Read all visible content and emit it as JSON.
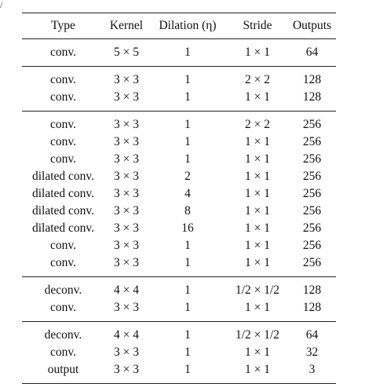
{
  "corner_mark": "/",
  "table": {
    "headers": [
      "Type",
      "Kernel",
      "Dilation (η)",
      "Stride",
      "Outputs"
    ],
    "groups": [
      [
        [
          "conv.",
          "5 × 5",
          "1",
          "1 × 1",
          "64"
        ]
      ],
      [
        [
          "conv.",
          "3 × 3",
          "1",
          "2 × 2",
          "128"
        ],
        [
          "conv.",
          "3 × 3",
          "1",
          "1 × 1",
          "128"
        ]
      ],
      [
        [
          "conv.",
          "3 × 3",
          "1",
          "2 × 2",
          "256"
        ],
        [
          "conv.",
          "3 × 3",
          "1",
          "1 × 1",
          "256"
        ],
        [
          "conv.",
          "3 × 3",
          "1",
          "1 × 1",
          "256"
        ],
        [
          "dilated conv.",
          "3 × 3",
          "2",
          "1 × 1",
          "256"
        ],
        [
          "dilated conv.",
          "3 × 3",
          "4",
          "1 × 1",
          "256"
        ],
        [
          "dilated conv.",
          "3 × 3",
          "8",
          "1 × 1",
          "256"
        ],
        [
          "dilated conv.",
          "3 × 3",
          "16",
          "1 × 1",
          "256"
        ],
        [
          "conv.",
          "3 × 3",
          "1",
          "1 × 1",
          "256"
        ],
        [
          "conv.",
          "3 × 3",
          "1",
          "1 × 1",
          "256"
        ]
      ],
      [
        [
          "deconv.",
          "4 × 4",
          "1",
          "1/2 × 1/2",
          "128"
        ],
        [
          "conv.",
          "3 × 3",
          "1",
          "1 × 1",
          "128"
        ]
      ],
      [
        [
          "deconv.",
          "4 × 4",
          "1",
          "1/2 × 1/2",
          "64"
        ],
        [
          "conv.",
          "3 × 3",
          "1",
          "1 × 1",
          "32"
        ],
        [
          "output",
          "3 × 3",
          "1",
          "1 × 1",
          "3"
        ]
      ]
    ]
  }
}
